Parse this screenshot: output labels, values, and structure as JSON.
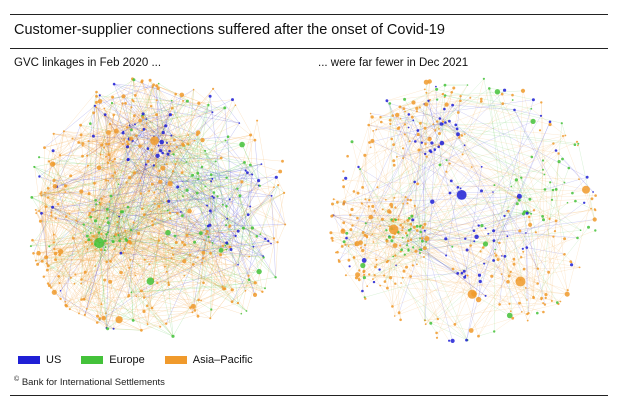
{
  "title": "Customer-supplier connections suffered after the onset of Covid-19",
  "panels": [
    {
      "subtitle": "GVC linkages in Feb 2020 ...",
      "density": "dense"
    },
    {
      "subtitle": "... were far fewer in Dec 2021",
      "density": "sparse"
    }
  ],
  "legend": [
    {
      "label": "US",
      "color": "#1f1fd6"
    },
    {
      "label": "Europe",
      "color": "#44c23a"
    },
    {
      "label": "Asia–Pacific",
      "color": "#f09a2c"
    }
  ],
  "footer": {
    "symbol": "©",
    "text": "Bank for International Settlements"
  }
}
